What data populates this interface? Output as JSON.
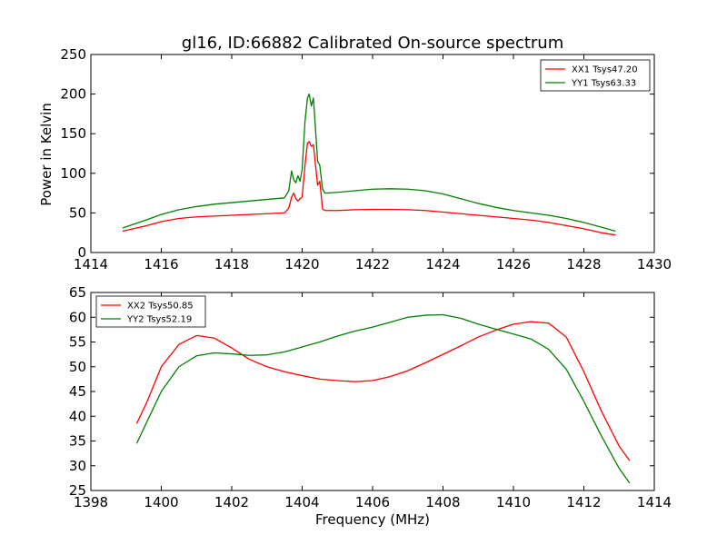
{
  "chart_data": [
    {
      "type": "line",
      "title": "gl16, ID:66882 Calibrated On-source spectrum",
      "xlabel": "",
      "ylabel": "Power in Kelvin",
      "xlim": [
        1414,
        1430
      ],
      "ylim": [
        0,
        250
      ],
      "xticks": [
        "1414",
        "1416",
        "1418",
        "1420",
        "1422",
        "1424",
        "1426",
        "1428",
        "1430"
      ],
      "yticks": [
        "0",
        "50",
        "100",
        "150",
        "200",
        "250"
      ],
      "legend_position": "top-right",
      "series": [
        {
          "name": "XX1 Tsys47.20",
          "color": "#ff0000",
          "x": [
            14.9,
            15.5,
            16.0,
            16.5,
            17.0,
            17.5,
            18.0,
            18.5,
            19.0,
            19.5,
            19.62,
            19.7,
            19.76,
            19.82,
            19.88,
            19.94,
            20.0,
            20.08,
            20.15,
            20.2,
            20.26,
            20.32,
            20.38,
            20.44,
            20.5,
            20.58,
            20.65,
            21.0,
            21.5,
            22.0,
            22.5,
            23.0,
            23.5,
            24.0,
            24.5,
            25.0,
            25.5,
            26.0,
            26.5,
            27.0,
            27.5,
            28.0,
            28.5,
            28.9
          ],
          "y": [
            27,
            33,
            39,
            43,
            45,
            46,
            47,
            48,
            49,
            50,
            56,
            70,
            75,
            68,
            65,
            68,
            70,
            110,
            138,
            140,
            134,
            136,
            110,
            85,
            90,
            55,
            53,
            53,
            54,
            54.5,
            54.5,
            54,
            53,
            51,
            49,
            47,
            45,
            43,
            41,
            38,
            34,
            30,
            25,
            22
          ]
        },
        {
          "name": "YY1 Tsys63.33",
          "color": "#008000",
          "x": [
            14.9,
            15.5,
            16.0,
            16.5,
            17.0,
            17.5,
            18.0,
            18.5,
            19.0,
            19.5,
            19.62,
            19.7,
            19.76,
            19.82,
            19.88,
            19.94,
            20.0,
            20.08,
            20.15,
            20.2,
            20.26,
            20.32,
            20.38,
            20.44,
            20.5,
            20.58,
            20.65,
            21.0,
            21.5,
            22.0,
            22.5,
            23.0,
            23.5,
            24.0,
            24.5,
            25.0,
            25.5,
            26.0,
            26.5,
            27.0,
            27.5,
            28.0,
            28.5,
            28.9
          ],
          "y": [
            31,
            40,
            48,
            54,
            58,
            61,
            63,
            65,
            67,
            69,
            78,
            103,
            92,
            88,
            97,
            90,
            105,
            165,
            195,
            200,
            185,
            195,
            155,
            115,
            110,
            80,
            75,
            76,
            78,
            80,
            80.5,
            80,
            78,
            74,
            68,
            62,
            57,
            53,
            50,
            47,
            43,
            38,
            32,
            27
          ]
        }
      ]
    },
    {
      "type": "line",
      "title": "",
      "xlabel": "Frequency (MHz)",
      "ylabel": "",
      "xlim": [
        1398,
        1414
      ],
      "ylim": [
        25,
        65
      ],
      "xticks": [
        "1398",
        "1400",
        "1402",
        "1404",
        "1406",
        "1408",
        "1410",
        "1412",
        "1414"
      ],
      "yticks": [
        "25",
        "30",
        "35",
        "40",
        "45",
        "50",
        "55",
        "60",
        "65"
      ],
      "legend_position": "top-left",
      "series": [
        {
          "name": "XX2 Tsys50.85",
          "color": "#ff0000",
          "x": [
            1399.3,
            1399.6,
            1400.0,
            1400.5,
            1401.0,
            1401.5,
            1402.0,
            1402.5,
            1403.0,
            1403.5,
            1404.0,
            1404.5,
            1405.0,
            1405.5,
            1406.0,
            1406.5,
            1407.0,
            1407.5,
            1408.0,
            1408.5,
            1409.0,
            1409.5,
            1410.0,
            1410.5,
            1411.0,
            1411.5,
            1412.0,
            1412.5,
            1413.0,
            1413.3
          ],
          "y": [
            38.5,
            43,
            50,
            54.5,
            56.3,
            55.8,
            53.8,
            51.5,
            50,
            49,
            48.2,
            47.5,
            47.2,
            47,
            47.2,
            48,
            49.2,
            50.8,
            52.5,
            54.2,
            56,
            57.4,
            58.6,
            59.1,
            58.8,
            56,
            49,
            41,
            34,
            31
          ]
        },
        {
          "name": "YY2 Tsys52.19",
          "color": "#008000",
          "x": [
            1399.3,
            1399.6,
            1400.0,
            1400.5,
            1401.0,
            1401.5,
            1402.0,
            1402.5,
            1403.0,
            1403.5,
            1404.0,
            1404.5,
            1405.0,
            1405.5,
            1406.0,
            1406.5,
            1407.0,
            1407.5,
            1408.0,
            1408.5,
            1409.0,
            1409.5,
            1410.0,
            1410.5,
            1411.0,
            1411.5,
            1412.0,
            1412.5,
            1413.0,
            1413.3
          ],
          "y": [
            34.5,
            39,
            45,
            50,
            52.2,
            52.8,
            52.6,
            52.3,
            52.4,
            53,
            54,
            55,
            56.2,
            57.2,
            58,
            59,
            60,
            60.4,
            60.5,
            59.8,
            58.6,
            57.6,
            56.6,
            55.6,
            53.5,
            49.5,
            43,
            36,
            29.5,
            26.5
          ]
        }
      ]
    }
  ]
}
